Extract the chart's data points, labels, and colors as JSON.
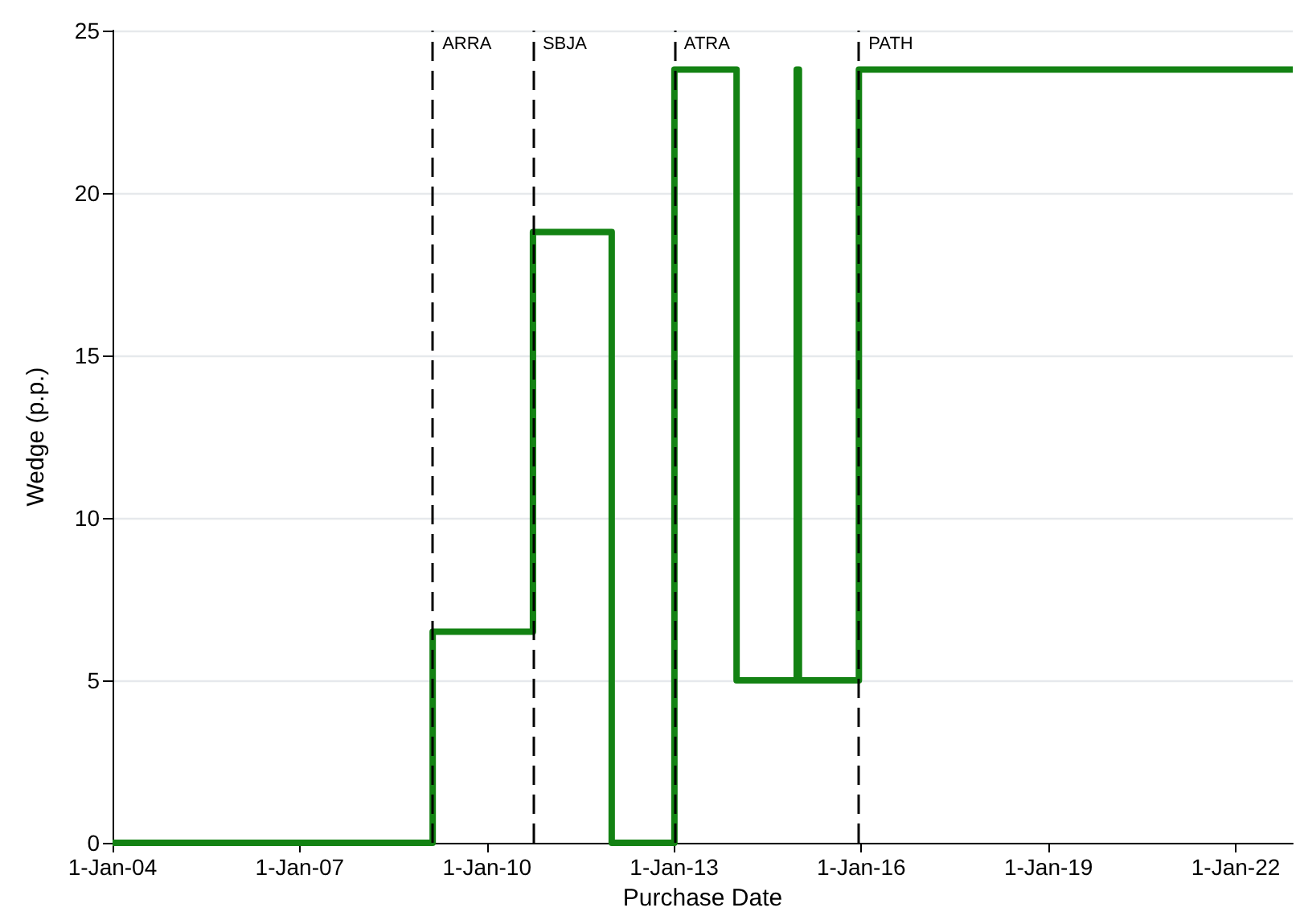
{
  "chart_data": {
    "type": "step",
    "xlabel": "Purchase Date",
    "ylabel": "Wedge (p.p.)",
    "x": [
      "2004-01-01",
      "2009-02-17",
      "2010-09-27",
      "2012-01-01",
      "2013-01-02",
      "2014-01-01",
      "2014-12-19",
      "2015-01-01",
      "2015-12-18",
      "2022-12-01"
    ],
    "series": [
      {
        "color": "#138213",
        "values": [
          0,
          6.5,
          18.8,
          0,
          23.8,
          5.0,
          23.8,
          5.0,
          23.8,
          23.8
        ]
      }
    ],
    "xlim": [
      "2004-01-01",
      "2022-12-01"
    ],
    "xticks": [
      {
        "value": "2004-01-01",
        "label": "1-Jan-04"
      },
      {
        "value": "2007-01-01",
        "label": "1-Jan-07"
      },
      {
        "value": "2010-01-01",
        "label": "1-Jan-10"
      },
      {
        "value": "2013-01-01",
        "label": "1-Jan-13"
      },
      {
        "value": "2016-01-01",
        "label": "1-Jan-16"
      },
      {
        "value": "2019-01-01",
        "label": "1-Jan-19"
      },
      {
        "value": "2022-01-01",
        "label": "1-Jan-22"
      }
    ],
    "ylim": [
      0,
      25
    ],
    "yticks": [
      0,
      5,
      10,
      15,
      20,
      25
    ],
    "ref_lines": [
      {
        "axis": "x",
        "value": "2009-02-17",
        "label": "ARRA",
        "color": "#000000",
        "line_style": "dashed"
      },
      {
        "axis": "x",
        "value": "2010-09-27",
        "label": "SBJA",
        "color": "#000000",
        "line_style": "dashed"
      },
      {
        "axis": "x",
        "value": "2013-01-02",
        "label": "ATRA",
        "color": "#000000",
        "line_style": "dashed"
      },
      {
        "axis": "x",
        "value": "2015-12-18",
        "label": "PATH",
        "color": "#000000",
        "line_style": "dashed"
      }
    ],
    "grid": "y",
    "marker": "none",
    "line_style": "solid"
  }
}
